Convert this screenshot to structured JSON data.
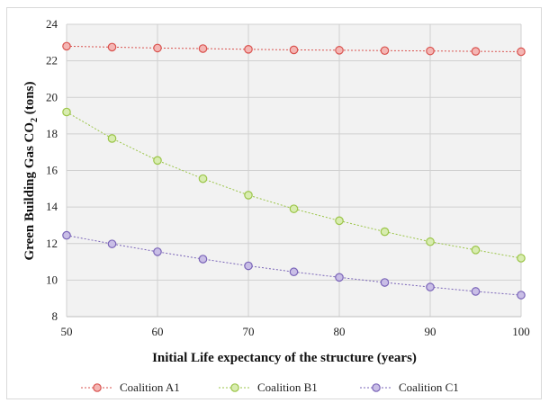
{
  "chart_data": {
    "type": "line",
    "xlabel": "Initial Life expectancy of the structure (years)",
    "ylabel_main": "Green Building Gas CO",
    "ylabel_sub": "2",
    "ylabel_unit": " (tons)",
    "x": [
      50,
      55,
      60,
      65,
      70,
      75,
      80,
      85,
      90,
      95,
      100
    ],
    "xlim": [
      50,
      100
    ],
    "ylim": [
      8,
      24
    ],
    "xticks": [
      "50",
      "60",
      "70",
      "80",
      "90",
      "100"
    ],
    "yticks": [
      "8",
      "10",
      "12",
      "14",
      "16",
      "18",
      "20",
      "22",
      "24"
    ],
    "grid": true,
    "legend_position": "bottom",
    "series": [
      {
        "name": "Coalition A1",
        "color": "#d9534f",
        "fill": "#f4b6b4",
        "values": [
          22.8,
          22.75,
          22.7,
          22.67,
          22.63,
          22.6,
          22.58,
          22.56,
          22.54,
          22.52,
          22.5
        ]
      },
      {
        "name": "Coalition B1",
        "color": "#9bc548",
        "fill": "#d8ecb0",
        "values": [
          19.2,
          17.75,
          16.55,
          15.55,
          14.65,
          13.9,
          13.25,
          12.65,
          12.1,
          11.65,
          11.2
        ]
      },
      {
        "name": "Coalition C1",
        "color": "#7a64b8",
        "fill": "#c9bee6",
        "values": [
          12.45,
          11.98,
          11.55,
          11.15,
          10.78,
          10.45,
          10.15,
          9.87,
          9.62,
          9.38,
          9.18
        ]
      }
    ]
  }
}
